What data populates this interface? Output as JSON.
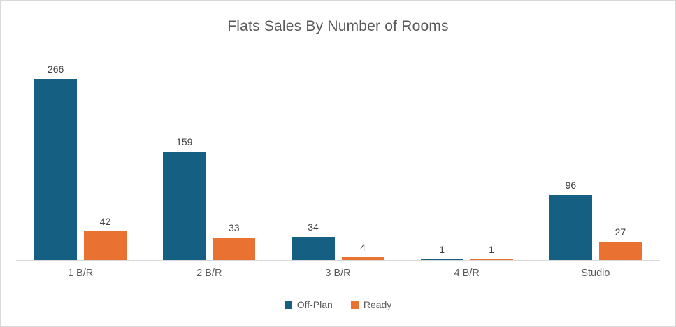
{
  "window": {
    "background": "#FFFFFF",
    "border_color": "#D9D9D9"
  },
  "chart_data": {
    "type": "bar",
    "title": "Flats Sales By Number of Rooms",
    "categories": [
      "1 B/R",
      "2 B/R",
      "3 B/R",
      "4 B/R",
      "Studio"
    ],
    "series": [
      {
        "name": "Off-Plan",
        "color": "#156082",
        "values": [
          266,
          159,
          34,
          1,
          96
        ]
      },
      {
        "name": "Ready",
        "color": "#E97132",
        "values": [
          42,
          33,
          4,
          1,
          27
        ]
      }
    ],
    "data_labels": true,
    "xlabel": "",
    "ylabel": "",
    "ylim": [
      0,
      300
    ],
    "grid": false,
    "y_axis_labels_visible": false,
    "axis_line_color": "#D9D9D9",
    "legend_position": "bottom",
    "title_color": "#595959",
    "data_label_color": "#404040",
    "category_label_color": "#595959",
    "legend_label_color": "#595959"
  }
}
